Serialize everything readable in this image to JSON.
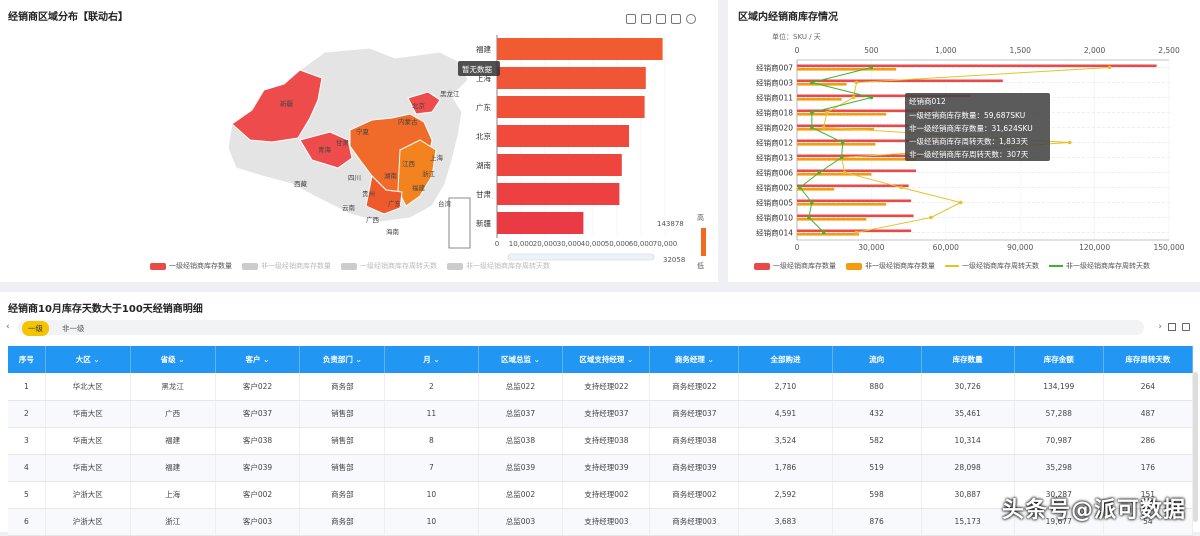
{
  "left": {
    "title": "经销商区域分布【联动右】",
    "tooltip": "暂无数据",
    "provinces": [
      "新疆",
      "西藏",
      "青海",
      "甘肃",
      "四川",
      "云南",
      "广西",
      "广东",
      "福建",
      "浙江",
      "上海",
      "北京",
      "黑龙江",
      "内蒙古",
      "湖南",
      "江西",
      "贵州",
      "宁夏",
      "海南",
      "台湾"
    ],
    "visual_max": "143878",
    "visual_min": "32058",
    "visual_high": "高",
    "visual_low": "低",
    "legend": [
      {
        "label": "一级经销商库存数量",
        "color": "#e84a4a",
        "active": true
      },
      {
        "label": "非一级经销商库存数量",
        "color": "#cccccc",
        "active": false
      },
      {
        "label": "一级经销商库存周转天数",
        "color": "#cccccc",
        "active": false
      },
      {
        "label": "非一级经销商库存周转天数",
        "color": "#cccccc",
        "active": false
      }
    ]
  },
  "right": {
    "title": "区域内经销商库存情况",
    "unit": "单位：SKU / 天",
    "tooltip": {
      "title": "经销商012",
      "lines": [
        "一级经销商库存数量：59,687SKU",
        "非一级经销商库存数量：31,624SKU",
        "一级经销商库存周转天数：1,833天",
        "非一级经销商库存周转天数：307天"
      ]
    },
    "legend": [
      {
        "label": "一级经销商库存数量",
        "color": "#e84a4a",
        "kind": "bar"
      },
      {
        "label": "非一级经销商库存数量",
        "color": "#f39c12",
        "kind": "bar"
      },
      {
        "label": "一级经销商库存周转天数",
        "color": "#e6c229",
        "kind": "line"
      },
      {
        "label": "非一级经销商库存周转天数",
        "color": "#3cb52e",
        "kind": "line"
      }
    ]
  },
  "chart_data": [
    {
      "type": "bar",
      "orientation": "horizontal",
      "categories": [
        "福建",
        "上海",
        "广东",
        "北京",
        "湖南",
        "甘肃",
        "新疆"
      ],
      "values": [
        69000,
        62000,
        61500,
        55000,
        52000,
        51000,
        36000
      ],
      "xlim": [
        0,
        70000
      ],
      "xticks": [
        "0",
        "10,000",
        "20,000",
        "30,000",
        "40,000",
        "50,000",
        "60,000",
        "70,000"
      ],
      "colors": [
        "#f15b31",
        "#f05535",
        "#f04f38",
        "#ef4a3c",
        "#ee453e",
        "#ed4040",
        "#ea3b44"
      ]
    },
    {
      "type": "bar",
      "orientation": "horizontal",
      "categories": [
        "经销商007",
        "经销商003",
        "经销商011",
        "经销商018",
        "经销商020",
        "经销商012",
        "经销商013",
        "经销商006",
        "经销商002",
        "经销商005",
        "经销商010",
        "经销商014"
      ],
      "series": [
        {
          "name": "一级经销商库存数量",
          "axis": "bottom",
          "values": [
            145000,
            83000,
            70000,
            55000,
            45000,
            59687,
            50000,
            48000,
            45000,
            46000,
            47000,
            46000
          ]
        },
        {
          "name": "非一级经销商库存数量",
          "axis": "bottom",
          "values": [
            40000,
            20000,
            18000,
            36000,
            31000,
            31624,
            48000,
            30000,
            15000,
            36000,
            28000,
            25000
          ]
        },
        {
          "name": "一级经销商库存周转天数",
          "axis": "top",
          "values": [
            2100,
            400,
            380,
            200,
            180,
            1833,
            300,
            320,
            700,
            1100,
            900,
            400
          ]
        },
        {
          "name": "非一级经销商库存周转天数",
          "axis": "top",
          "values": [
            500,
            100,
            500,
            100,
            100,
            307,
            300,
            150,
            20,
            100,
            80,
            180
          ]
        }
      ],
      "xlim_bottom": [
        0,
        150000
      ],
      "xticks_bottom": [
        "0",
        "30,000",
        "60,000",
        "90,000",
        "120,000",
        "150,000"
      ],
      "xlim_top": [
        0,
        2500
      ],
      "xticks_top": [
        "0",
        "500",
        "1,000",
        "1,500",
        "2,000",
        "2,500"
      ]
    }
  ],
  "table": {
    "title": "经销商10月库存天数大于100天经销商明细",
    "tabs": [
      "一级",
      "非一级"
    ],
    "headers": [
      "序号",
      "大区",
      "省级",
      "客户",
      "负责部门",
      "月",
      "区域总监",
      "区域支持经理",
      "商务经理",
      "全部购进",
      "流向",
      "库存数量",
      "库存金额",
      "库存周转天数"
    ],
    "sortable": [
      false,
      true,
      true,
      true,
      true,
      true,
      true,
      true,
      true,
      false,
      false,
      false,
      false,
      false
    ],
    "rows": [
      [
        "1",
        "华北大区",
        "黑龙江",
        "客户022",
        "商务部",
        "2",
        "总监022",
        "支持经理022",
        "商务经理022",
        "2,710",
        "880",
        "30,726",
        "134,199",
        "264"
      ],
      [
        "2",
        "华南大区",
        "广西",
        "客户037",
        "销售部",
        "11",
        "总监037",
        "支持经理037",
        "商务经理037",
        "4,591",
        "432",
        "35,461",
        "57,288",
        "487"
      ],
      [
        "3",
        "华南大区",
        "福建",
        "客户038",
        "销售部",
        "8",
        "总监038",
        "支持经理038",
        "商务经理038",
        "3,524",
        "582",
        "10,314",
        "70,987",
        "286"
      ],
      [
        "4",
        "华南大区",
        "福建",
        "客户039",
        "销售部",
        "7",
        "总监039",
        "支持经理039",
        "商务经理039",
        "1,786",
        "519",
        "28,098",
        "35,298",
        "176"
      ],
      [
        "5",
        "沪浙大区",
        "上海",
        "客户002",
        "商务部",
        "10",
        "总监002",
        "支持经理002",
        "商务经理002",
        "2,592",
        "598",
        "30,887",
        "30,287",
        "151"
      ],
      [
        "6",
        "沪浙大区",
        "浙江",
        "客户003",
        "商务部",
        "10",
        "总监003",
        "支持经理003",
        "商务经理003",
        "3,683",
        "876",
        "15,173",
        "19,677",
        "54"
      ]
    ]
  },
  "watermark": "头条号@派可数据",
  "colors": {
    "header": "#2196f3",
    "accent": "#f5c400"
  }
}
